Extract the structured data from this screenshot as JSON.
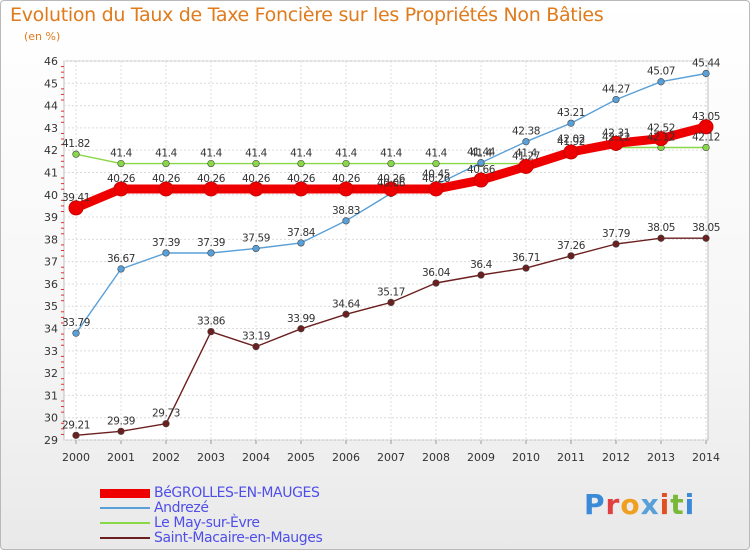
{
  "title": "Evolution du Taux de Taxe Foncière sur les Propriétés Non Bâties",
  "unit": "(en %)",
  "logo": "Proxiti",
  "chart_data": {
    "type": "line",
    "title": "Evolution du Taux de Taxe Foncière sur les Propriétés Non Bâties",
    "ylabel": "(en %)",
    "x": [
      2000,
      2001,
      2002,
      2003,
      2004,
      2005,
      2006,
      2007,
      2008,
      2009,
      2010,
      2011,
      2012,
      2013,
      2014
    ],
    "ylim": [
      29,
      46
    ],
    "yticks": [
      29,
      30,
      31,
      32,
      33,
      34,
      35,
      36,
      37,
      38,
      39,
      40,
      41,
      42,
      43,
      44,
      45,
      46
    ],
    "grid": true,
    "legend_position": "bottom-left",
    "series": [
      {
        "name": "BéGROLLES-EN-MAUGES",
        "color": "#ee0000",
        "values": [
          39.41,
          40.26,
          40.26,
          40.26,
          40.26,
          40.26,
          40.26,
          40.26,
          40.26,
          40.66,
          41.27,
          41.92,
          42.31,
          42.52,
          43.05
        ],
        "labels": [
          "39.41",
          "40.26",
          "40.26",
          "40.26",
          "40.26",
          "40.26",
          "40.26",
          "40.26",
          "40.26",
          "40.66",
          "41.27",
          "41.92",
          "42.31",
          "42.52",
          "43.05"
        ]
      },
      {
        "name": "Andrezé",
        "color": "#5aa0d8",
        "values": [
          33.79,
          36.67,
          37.39,
          37.39,
          37.59,
          37.84,
          38.83,
          40.06,
          40.45,
          41.44,
          42.38,
          43.21,
          44.27,
          45.07,
          45.44
        ],
        "labels": [
          "33.79",
          "36.67",
          "37.39",
          "37.39",
          "37.59",
          "37.84",
          "38.83",
          "40.06",
          "40.45",
          "41.44",
          "42.38",
          "43.21",
          "44.27",
          "45.07",
          "45.44"
        ]
      },
      {
        "name": "Le May-sur-Èvre",
        "color": "#88d848",
        "values": [
          41.82,
          41.4,
          41.4,
          41.4,
          41.4,
          41.4,
          41.4,
          41.4,
          41.4,
          41.4,
          41.4,
          42.02,
          42.12,
          42.12,
          42.12
        ],
        "labels": [
          "41.82",
          "41.4",
          "41.4",
          "41.4",
          "41.4",
          "41.4",
          "41.4",
          "41.4",
          "41.4",
          "41.4",
          "41.4",
          "42.02",
          "42.12",
          "42.12",
          "42.12"
        ]
      },
      {
        "name": "Saint-Macaire-en-Mauges",
        "color": "#6b1f1f",
        "values": [
          29.21,
          29.39,
          29.73,
          33.86,
          33.19,
          33.99,
          34.64,
          35.17,
          36.04,
          36.4,
          36.71,
          37.26,
          37.79,
          38.05,
          38.05
        ],
        "labels": [
          "29.21",
          "29.39",
          "29.73",
          "33.86",
          "33.19",
          "33.99",
          "34.64",
          "35.17",
          "36.04",
          "36.4",
          "36.71",
          "37.26",
          "37.79",
          "38.05",
          "38.05"
        ]
      }
    ]
  }
}
